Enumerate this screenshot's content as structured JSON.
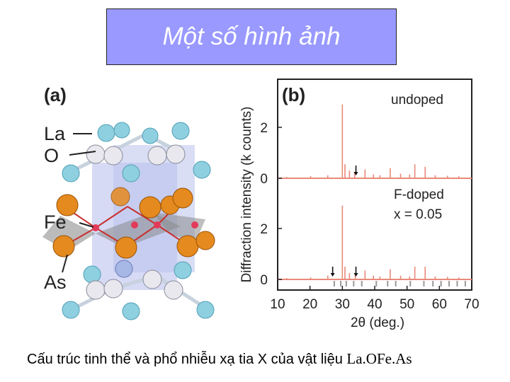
{
  "slide": {
    "title": "Một số hình ảnh",
    "caption_text": "Cấu trúc tinh thể và phổ nhiễu xạ tia X của vật liệu ",
    "caption_formula": "La.OFe.As"
  },
  "structure_panel": {
    "label": "(a)",
    "atoms": [
      "La",
      "O",
      "Fe",
      "As"
    ]
  },
  "chart_data": {
    "type": "line",
    "panel_label": "(b)",
    "xlabel": "2θ (deg.)",
    "ylabel": "Diffraction intensity (k counts)",
    "xlim": [
      10,
      70
    ],
    "x_ticks": [
      "10",
      "20",
      "30",
      "40",
      "50",
      "60",
      "70"
    ],
    "y_ticks_upper": [
      "0",
      "2"
    ],
    "y_ticks_lower": [
      "0",
      "2"
    ],
    "series_labels": {
      "undoped": "undoped",
      "doped_line1": "F-doped",
      "doped_line2": "x = 0.05"
    },
    "series": [
      {
        "name": "undoped",
        "peaks": [
          [
            12.8,
            0.05
          ],
          [
            20.2,
            0.08
          ],
          [
            25.5,
            0.12
          ],
          [
            30.0,
            2.9
          ],
          [
            30.8,
            0.55
          ],
          [
            32.2,
            0.3
          ],
          [
            33.8,
            0.25
          ],
          [
            37.0,
            0.35
          ],
          [
            39.6,
            0.15
          ],
          [
            41.6,
            0.12
          ],
          [
            44.8,
            0.4
          ],
          [
            48.0,
            0.18
          ],
          [
            50.8,
            0.15
          ],
          [
            52.4,
            0.55
          ],
          [
            55.6,
            0.45
          ],
          [
            58.7,
            0.12
          ],
          [
            62.5,
            0.1
          ],
          [
            66.0,
            0.08
          ]
        ],
        "arrow_x": [
          34.2
        ]
      },
      {
        "name": "F-doped",
        "peaks": [
          [
            12.8,
            0.05
          ],
          [
            20.2,
            0.08
          ],
          [
            25.5,
            0.15
          ],
          [
            30.0,
            2.9
          ],
          [
            30.8,
            0.5
          ],
          [
            32.2,
            0.25
          ],
          [
            34.0,
            0.2
          ],
          [
            37.0,
            0.35
          ],
          [
            39.6,
            0.15
          ],
          [
            41.6,
            0.12
          ],
          [
            44.8,
            0.4
          ],
          [
            48.0,
            0.15
          ],
          [
            50.8,
            0.12
          ],
          [
            52.4,
            0.5
          ],
          [
            55.6,
            0.5
          ],
          [
            58.7,
            0.12
          ],
          [
            62.5,
            0.1
          ],
          [
            66.0,
            0.08
          ]
        ],
        "arrow_x": [
          27.0,
          34.2
        ]
      }
    ],
    "colors": {
      "trace": "#e9897a",
      "marker": "#9a9a9a",
      "axis": "#222222"
    }
  }
}
